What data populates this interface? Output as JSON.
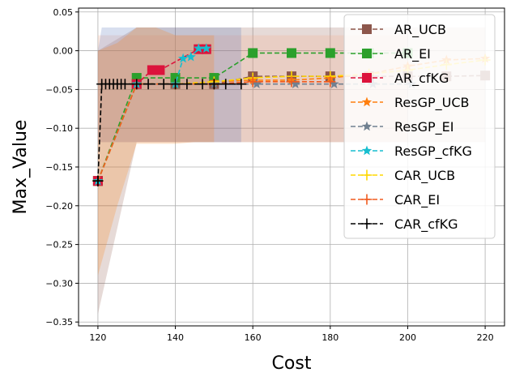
{
  "chart_data": {
    "type": "line",
    "title": "",
    "xlabel": "Cost",
    "ylabel": "Max_Value",
    "xlim": [
      115,
      225
    ],
    "ylim": [
      -0.355,
      0.055
    ],
    "xticks": [
      120,
      140,
      160,
      180,
      200,
      220
    ],
    "yticks": [
      -0.35,
      -0.3,
      -0.25,
      -0.2,
      -0.15,
      -0.1,
      -0.05,
      0.0,
      0.05
    ],
    "ytick_labels": [
      "−0.35",
      "−0.30",
      "−0.25",
      "−0.20",
      "−0.15",
      "−0.10",
      "−0.05",
      "0.00",
      "0.05"
    ],
    "grid": true,
    "legend_position": "top-right",
    "bands": [
      {
        "color": "#8c564b",
        "x": [
          120,
          130,
          140,
          150,
          160,
          170,
          180,
          190,
          200,
          210,
          220
        ],
        "lower": [
          -0.34,
          -0.118,
          -0.118,
          -0.118,
          -0.118,
          -0.118,
          -0.118,
          -0.118,
          -0.118,
          -0.118,
          -0.118
        ],
        "upper": [
          0.0,
          0.03,
          0.03,
          0.03,
          0.03,
          0.03,
          0.03,
          0.03,
          0.03,
          0.03,
          0.03
        ]
      },
      {
        "color": "#f4a582",
        "x": [
          120,
          160,
          180,
          200
        ],
        "lower": [
          -0.118,
          -0.118,
          -0.118,
          -0.118
        ],
        "upper": [
          0.02,
          0.02,
          0.02,
          0.02
        ]
      },
      {
        "color": "#4f6db8",
        "x": [
          120,
          121,
          157
        ],
        "lower": [
          -0.118,
          -0.118,
          -0.118
        ],
        "upper": [
          0.0,
          0.03,
          0.03
        ]
      },
      {
        "color": "#ff7f0e",
        "x": [
          120,
          125,
          130,
          135,
          140,
          145,
          150
        ],
        "lower": [
          -0.29,
          -0.2,
          -0.12,
          -0.12,
          -0.12,
          -0.118,
          -0.118
        ],
        "upper": [
          0.0,
          0.01,
          0.03,
          0.03,
          0.02,
          0.02,
          0.02
        ]
      }
    ],
    "series": [
      {
        "name": "AR_UCB",
        "color": "#8c564b",
        "marker": "square",
        "x": [
          120,
          130,
          140,
          150,
          160,
          170,
          180,
          190,
          200,
          210,
          220
        ],
        "y": [
          -0.168,
          -0.043,
          -0.043,
          -0.043,
          -0.033,
          -0.033,
          -0.033,
          -0.033,
          -0.033,
          -0.033,
          -0.032
        ]
      },
      {
        "name": "AR_EI",
        "color": "#2ca02c",
        "marker": "square",
        "x": [
          120,
          130,
          140,
          150,
          160,
          170,
          180,
          190,
          200
        ],
        "y": [
          -0.168,
          -0.035,
          -0.035,
          -0.035,
          -0.003,
          -0.003,
          -0.003,
          -0.003,
          -0.003
        ]
      },
      {
        "name": "AR_cfKG",
        "color": "#dc143c",
        "marker": "square",
        "x": [
          120,
          130,
          134,
          136,
          146,
          148
        ],
        "y": [
          -0.168,
          -0.043,
          -0.025,
          -0.025,
          0.002,
          0.002
        ]
      },
      {
        "name": "ResGP_UCB",
        "color": "#ff7f0e",
        "marker": "star",
        "x": [
          120,
          130,
          140,
          150,
          160,
          170,
          180,
          190,
          200,
          210,
          220
        ],
        "y": [
          -0.168,
          -0.043,
          -0.043,
          -0.04,
          -0.038,
          -0.038,
          -0.035,
          -0.03,
          -0.02,
          -0.012,
          -0.01
        ]
      },
      {
        "name": "ResGP_EI",
        "color": "#708090",
        "marker": "star",
        "x": [
          120,
          130,
          140,
          150,
          161,
          171,
          181,
          191,
          201
        ],
        "y": [
          -0.168,
          -0.043,
          -0.043,
          -0.043,
          -0.043,
          -0.043,
          -0.043,
          -0.043,
          -0.043
        ]
      },
      {
        "name": "ResGP_cfKG",
        "color": "#17becf",
        "marker": "star",
        "x": [
          120,
          130,
          140,
          142,
          144,
          146,
          148
        ],
        "y": [
          -0.168,
          -0.043,
          -0.043,
          -0.01,
          -0.008,
          0.003,
          0.003
        ]
      },
      {
        "name": "CAR_UCB",
        "color": "#ffd700",
        "marker": "plus",
        "x": [
          120,
          130,
          140,
          150,
          160,
          170,
          180,
          190,
          200,
          210,
          220
        ],
        "y": [
          -0.168,
          -0.043,
          -0.043,
          -0.04,
          -0.035,
          -0.033,
          -0.033,
          -0.03,
          -0.025,
          -0.018,
          -0.012
        ]
      },
      {
        "name": "CAR_EI",
        "color": "#f05a1e",
        "marker": "plus",
        "x": [
          120,
          130,
          140,
          150,
          160,
          170,
          180
        ],
        "y": [
          -0.168,
          -0.043,
          -0.043,
          -0.043,
          -0.04,
          -0.04,
          -0.04
        ]
      },
      {
        "name": "CAR_cfKG",
        "color": "#000000",
        "marker": "plus",
        "x": [
          120,
          120,
          121,
          122,
          123,
          124,
          125,
          126,
          127,
          130,
          133,
          137,
          140,
          143,
          147,
          150,
          153,
          157
        ],
        "y": [
          -0.168,
          -0.168,
          -0.043,
          -0.043,
          -0.043,
          -0.043,
          -0.043,
          -0.043,
          -0.043,
          -0.043,
          -0.043,
          -0.043,
          -0.043,
          -0.043,
          -0.043,
          -0.043,
          -0.043,
          -0.043
        ]
      }
    ]
  }
}
